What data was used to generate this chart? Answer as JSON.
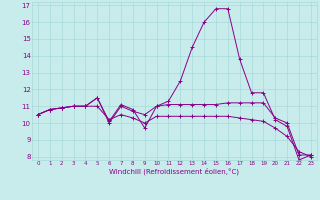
{
  "xlabel": "Windchill (Refroidissement éolien,°C)",
  "xlim": [
    -0.5,
    23.5
  ],
  "ylim": [
    7.8,
    17.2
  ],
  "yticks": [
    8,
    9,
    10,
    11,
    12,
    13,
    14,
    15,
    16,
    17
  ],
  "xticks": [
    0,
    1,
    2,
    3,
    4,
    5,
    6,
    7,
    8,
    9,
    10,
    11,
    12,
    13,
    14,
    15,
    16,
    17,
    18,
    19,
    20,
    21,
    22,
    23
  ],
  "background_color": "#c8ecec",
  "grid_color": "#a8d8d8",
  "line_color": "#880088",
  "series": [
    [
      10.5,
      10.8,
      10.9,
      11.0,
      11.0,
      11.5,
      10.1,
      11.1,
      10.8,
      9.7,
      11.0,
      11.3,
      12.5,
      14.5,
      16.0,
      16.8,
      16.8,
      13.8,
      11.8,
      11.8,
      10.2,
      9.8,
      7.8,
      8.1
    ],
    [
      10.5,
      10.8,
      10.9,
      11.0,
      11.0,
      11.5,
      10.0,
      11.0,
      10.7,
      10.5,
      11.0,
      11.1,
      11.1,
      11.1,
      11.1,
      11.1,
      11.2,
      11.2,
      11.2,
      11.2,
      10.3,
      10.0,
      8.1,
      8.1
    ],
    [
      10.5,
      10.8,
      10.9,
      11.0,
      11.0,
      11.0,
      10.2,
      10.5,
      10.3,
      10.0,
      10.4,
      10.4,
      10.4,
      10.4,
      10.4,
      10.4,
      10.4,
      10.3,
      10.2,
      10.1,
      9.7,
      9.2,
      8.3,
      8.0
    ]
  ]
}
